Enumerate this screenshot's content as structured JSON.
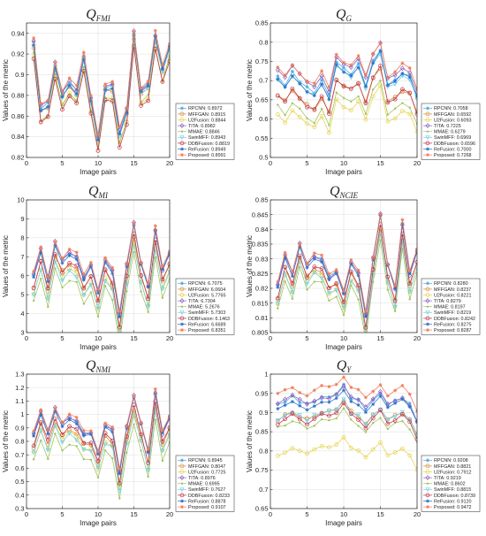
{
  "axis_labels": {
    "x": "Image pairs",
    "y": "Values of the metric"
  },
  "charts": [
    {
      "title_main": "Q",
      "title_sub": "FMI"
    },
    {
      "title_main": "Q",
      "title_sub": "G"
    },
    {
      "title_main": "Q",
      "title_sub": "MI"
    },
    {
      "title_main": "Q",
      "title_sub": "NCIE"
    },
    {
      "title_main": "Q",
      "title_sub": "NMI"
    },
    {
      "title_main": "Q",
      "title_sub": "Y"
    }
  ],
  "colors": [
    "#4aa8e0",
    "#d98c3a",
    "#e6d24a",
    "#8a5fbf",
    "#9fc25a",
    "#6fd0e8",
    "#c0334a",
    "#2e72c8",
    "#f07a55"
  ],
  "chart_data": [
    {
      "type": "line",
      "title": "Q_FMI",
      "xlabel": "Image pairs",
      "ylabel": "Values of the metric",
      "xlim": [
        0,
        20
      ],
      "ylim": [
        0.82,
        0.95
      ],
      "xticks": [
        0,
        5,
        10,
        15,
        20
      ],
      "yticks": [
        0.82,
        0.84,
        0.86,
        0.88,
        0.9,
        0.92,
        0.94
      ],
      "ytick_labels": [
        "0.82",
        "0.84",
        "0.86",
        "0.88",
        "0.9",
        "0.92",
        "0.94"
      ],
      "x": [
        1,
        2,
        3,
        4,
        5,
        6,
        7,
        8,
        9,
        10,
        11,
        12,
        13,
        14,
        15,
        16,
        17,
        18,
        19,
        20
      ],
      "base": [
        0.931,
        0.868,
        0.872,
        0.91,
        0.882,
        0.893,
        0.885,
        0.918,
        0.878,
        0.84,
        0.888,
        0.889,
        0.845,
        0.865,
        0.94,
        0.885,
        0.89,
        0.938,
        0.906,
        0.928
      ],
      "series": [
        {
          "name": "RPCNN: 0.8972",
          "offset": 0.0
        },
        {
          "name": "MFFGAN: 0.8915",
          "offset": -0.004
        },
        {
          "name": "U2Fusion: 0.8844",
          "offset": -0.012
        },
        {
          "name": "TITA: 0.8982",
          "offset": 0.001
        },
        {
          "name": "MMAE: 0.8846",
          "offset": -0.011
        },
        {
          "name": "SwinMFF: 0.8943",
          "offset": -0.003
        },
        {
          "name": "DDBFusion: 0.8819",
          "offset": -0.014
        },
        {
          "name": "ReFusion: 0.8949",
          "offset": -0.002
        },
        {
          "name": "Proposed: 0.8991",
          "offset": 0.003
        }
      ]
    },
    {
      "type": "line",
      "title": "Q_G",
      "xlabel": "Image pairs",
      "ylabel": "Values of the metric",
      "xlim": [
        0,
        20
      ],
      "ylim": [
        0.5,
        0.85
      ],
      "xticks": [
        0,
        5,
        10,
        15,
        20
      ],
      "yticks": [
        0.5,
        0.55,
        0.6,
        0.65,
        0.7,
        0.75,
        0.8,
        0.85
      ],
      "ytick_labels": [
        "0.5",
        "0.55",
        "0.6",
        "0.65",
        "0.7",
        "0.75",
        "0.8",
        "0.85"
      ],
      "x": [
        1,
        2,
        3,
        4,
        5,
        6,
        7,
        8,
        9,
        10,
        11,
        12,
        13,
        14,
        15,
        16,
        17,
        18,
        19,
        20
      ],
      "base": [
        0.71,
        0.69,
        0.72,
        0.7,
        0.68,
        0.67,
        0.7,
        0.66,
        0.75,
        0.73,
        0.72,
        0.74,
        0.69,
        0.75,
        0.78,
        0.69,
        0.7,
        0.72,
        0.71,
        0.66
      ],
      "series": [
        {
          "name": "RPCNN: 0.7058",
          "offset": 0.0
        },
        {
          "name": "MFFGAN: 0.6592",
          "offset": -0.045
        },
        {
          "name": "U2Fusion: 0.6093",
          "offset": -0.095
        },
        {
          "name": "TITA: 0.7225",
          "offset": 0.015
        },
        {
          "name": "MMAE: 0.6279",
          "offset": -0.077
        },
        {
          "name": "SwinMFF: 0.6969",
          "offset": -0.008
        },
        {
          "name": "DDBFusion: 0.6596",
          "offset": -0.045
        },
        {
          "name": "ReFusion: 0.7000",
          "offset": -0.005
        },
        {
          "name": "Proposed: 0.7268",
          "offset": 0.021
        }
      ]
    },
    {
      "type": "line",
      "title": "Q_MI",
      "xlabel": "Image pairs",
      "ylabel": "Values of the metric",
      "xlim": [
        0,
        20
      ],
      "ylim": [
        3,
        10
      ],
      "xticks": [
        0,
        5,
        10,
        15,
        20
      ],
      "yticks": [
        3,
        4,
        5,
        6,
        7,
        8,
        9,
        10
      ],
      "ytick_labels": [
        "3",
        "4",
        "5",
        "6",
        "7",
        "8",
        "9",
        "10"
      ],
      "x": [
        1,
        2,
        3,
        4,
        5,
        6,
        7,
        8,
        9,
        10,
        11,
        12,
        13,
        14,
        15,
        16,
        17,
        18,
        19,
        20
      ],
      "base": [
        6.0,
        7.3,
        5.8,
        7.7,
        6.8,
        7.2,
        7.0,
        5.9,
        6.6,
        5.2,
        6.8,
        6.2,
        3.9,
        6.5,
        8.7,
        6.6,
        5.4,
        8.4,
        6.3,
        7.2
      ],
      "series": [
        {
          "name": "RPCNN: 6.7075",
          "offset": 0.0
        },
        {
          "name": "MFFGAN: 6.0604",
          "offset": -0.6
        },
        {
          "name": "U2Fusion: 5.7765",
          "offset": -0.9
        },
        {
          "name": "TITA: 6.7304",
          "offset": 0.05
        },
        {
          "name": "MMAE: 5.2676",
          "offset": -1.4
        },
        {
          "name": "SwinMFF: 5.7303",
          "offset": -1.0
        },
        {
          "name": "DDBFusion: 6.1463",
          "offset": -0.55
        },
        {
          "name": "ReFusion: 6.6689",
          "offset": -0.05
        },
        {
          "name": "Proposed: 6.8351",
          "offset": 0.15
        }
      ]
    },
    {
      "type": "line",
      "title": "Q_NCIE",
      "xlabel": "Image pairs",
      "ylabel": "Values of the metric",
      "xlim": [
        0,
        20
      ],
      "ylim": [
        0.805,
        0.85
      ],
      "xticks": [
        0,
        5,
        10,
        15,
        20
      ],
      "yticks": [
        0.805,
        0.81,
        0.815,
        0.82,
        0.825,
        0.83,
        0.835,
        0.84,
        0.845,
        0.85
      ],
      "ytick_labels": [
        "0.805",
        "0.81",
        "0.815",
        "0.82",
        "0.825",
        "0.83",
        "0.835",
        "0.84",
        "0.845",
        "0.85"
      ],
      "x": [
        1,
        2,
        3,
        4,
        5,
        6,
        7,
        8,
        9,
        10,
        11,
        12,
        13,
        14,
        15,
        16,
        17,
        18,
        19,
        20
      ],
      "base": [
        0.821,
        0.831,
        0.825,
        0.835,
        0.828,
        0.831,
        0.83,
        0.824,
        0.826,
        0.819,
        0.829,
        0.825,
        0.811,
        0.83,
        0.845,
        0.828,
        0.82,
        0.842,
        0.825,
        0.833
      ],
      "series": [
        {
          "name": "RPCNN: 0.8280",
          "offset": 0.0
        },
        {
          "name": "MFFGAN: 0.8237",
          "offset": -0.0043
        },
        {
          "name": "U2Fusion: 0.8221",
          "offset": -0.0059
        },
        {
          "name": "TITA: 0.8279",
          "offset": -0.0001
        },
        {
          "name": "MMAE: 0.8197",
          "offset": -0.0083
        },
        {
          "name": "SwinMFF: 0.8219",
          "offset": -0.0061
        },
        {
          "name": "DDBFusion: 0.8242",
          "offset": -0.0038
        },
        {
          "name": "ReFusion: 0.8275",
          "offset": -0.0005
        },
        {
          "name": "Proposed: 0.8287",
          "offset": 0.0007
        }
      ]
    },
    {
      "type": "line",
      "title": "Q_NMI",
      "xlabel": "Image pairs",
      "ylabel": "Values of the metric",
      "xlim": [
        0,
        20
      ],
      "ylim": [
        0.3,
        1.3
      ],
      "xticks": [
        0,
        5,
        10,
        15,
        20
      ],
      "yticks": [
        0.3,
        0.4,
        0.5,
        0.6,
        0.7,
        0.8,
        0.9,
        1.0,
        1.1,
        1.2,
        1.3
      ],
      "ytick_labels": [
        "0.3",
        "0.4",
        "0.5",
        "0.6",
        "0.7",
        "0.8",
        "0.9",
        "1",
        "1.1",
        "1.2",
        "1.3"
      ],
      "x": [
        1,
        2,
        3,
        4,
        5,
        6,
        7,
        8,
        9,
        10,
        11,
        12,
        13,
        14,
        15,
        16,
        17,
        18,
        19,
        20
      ],
      "base": [
        0.85,
        1.01,
        0.87,
        1.04,
        0.93,
        0.98,
        0.95,
        0.86,
        0.87,
        0.72,
        0.92,
        0.88,
        0.57,
        0.9,
        1.13,
        0.93,
        0.72,
        1.16,
        0.86,
        0.98
      ],
      "series": [
        {
          "name": "RPCNN: 0.8945",
          "offset": 0.0
        },
        {
          "name": "MFFGAN: 0.8047",
          "offset": -0.09
        },
        {
          "name": "U2Fusion: 0.7725",
          "offset": -0.12
        },
        {
          "name": "TITA: 0.8976",
          "offset": 0.003
        },
        {
          "name": "MMAE: 0.6995",
          "offset": -0.195
        },
        {
          "name": "SwinMFF: 0.7627",
          "offset": -0.13
        },
        {
          "name": "DDBFusion: 0.8233",
          "offset": -0.07
        },
        {
          "name": "ReFusion: 0.8878",
          "offset": -0.007
        },
        {
          "name": "Proposed: 0.9107",
          "offset": 0.016
        }
      ]
    },
    {
      "type": "line",
      "title": "Q_Y",
      "xlabel": "Image pairs",
      "ylabel": "Values of the metric",
      "xlim": [
        0,
        20
      ],
      "ylim": [
        0.65,
        1.0
      ],
      "xticks": [
        0,
        5,
        10,
        15,
        20
      ],
      "yticks": [
        0.65,
        0.7,
        0.75,
        0.8,
        0.85,
        0.9,
        0.95,
        1.0
      ],
      "ytick_labels": [
        "0.65",
        "0.7",
        "0.75",
        "0.8",
        "0.85",
        "0.9",
        "0.95",
        "1"
      ],
      "x": [
        1,
        2,
        3,
        4,
        5,
        6,
        7,
        8,
        9,
        10,
        11,
        12,
        13,
        14,
        15,
        16,
        17,
        18,
        19,
        20
      ],
      "base": [
        0.92,
        0.93,
        0.94,
        0.93,
        0.92,
        0.93,
        0.94,
        0.94,
        0.95,
        0.97,
        0.94,
        0.93,
        0.91,
        0.93,
        0.95,
        0.92,
        0.93,
        0.94,
        0.92,
        0.88
      ],
      "series": [
        {
          "name": "RPCNN: 0.9208",
          "offset": 0.0
        },
        {
          "name": "MFFGAN: 0.8821",
          "offset": -0.039
        },
        {
          "name": "U2Fusion: 0.7912",
          "offset": -0.13
        },
        {
          "name": "TITA: 0.9219",
          "offset": 0.001
        },
        {
          "name": "MMAE: 0.8602",
          "offset": -0.061
        },
        {
          "name": "SwinMFF: 0.8815",
          "offset": -0.039
        },
        {
          "name": "DDBFusion: 0.8739",
          "offset": -0.047
        },
        {
          "name": "ReFusion: 0.9120",
          "offset": -0.009
        },
        {
          "name": "Proposed: 0.9472",
          "offset": 0.026
        }
      ]
    }
  ]
}
